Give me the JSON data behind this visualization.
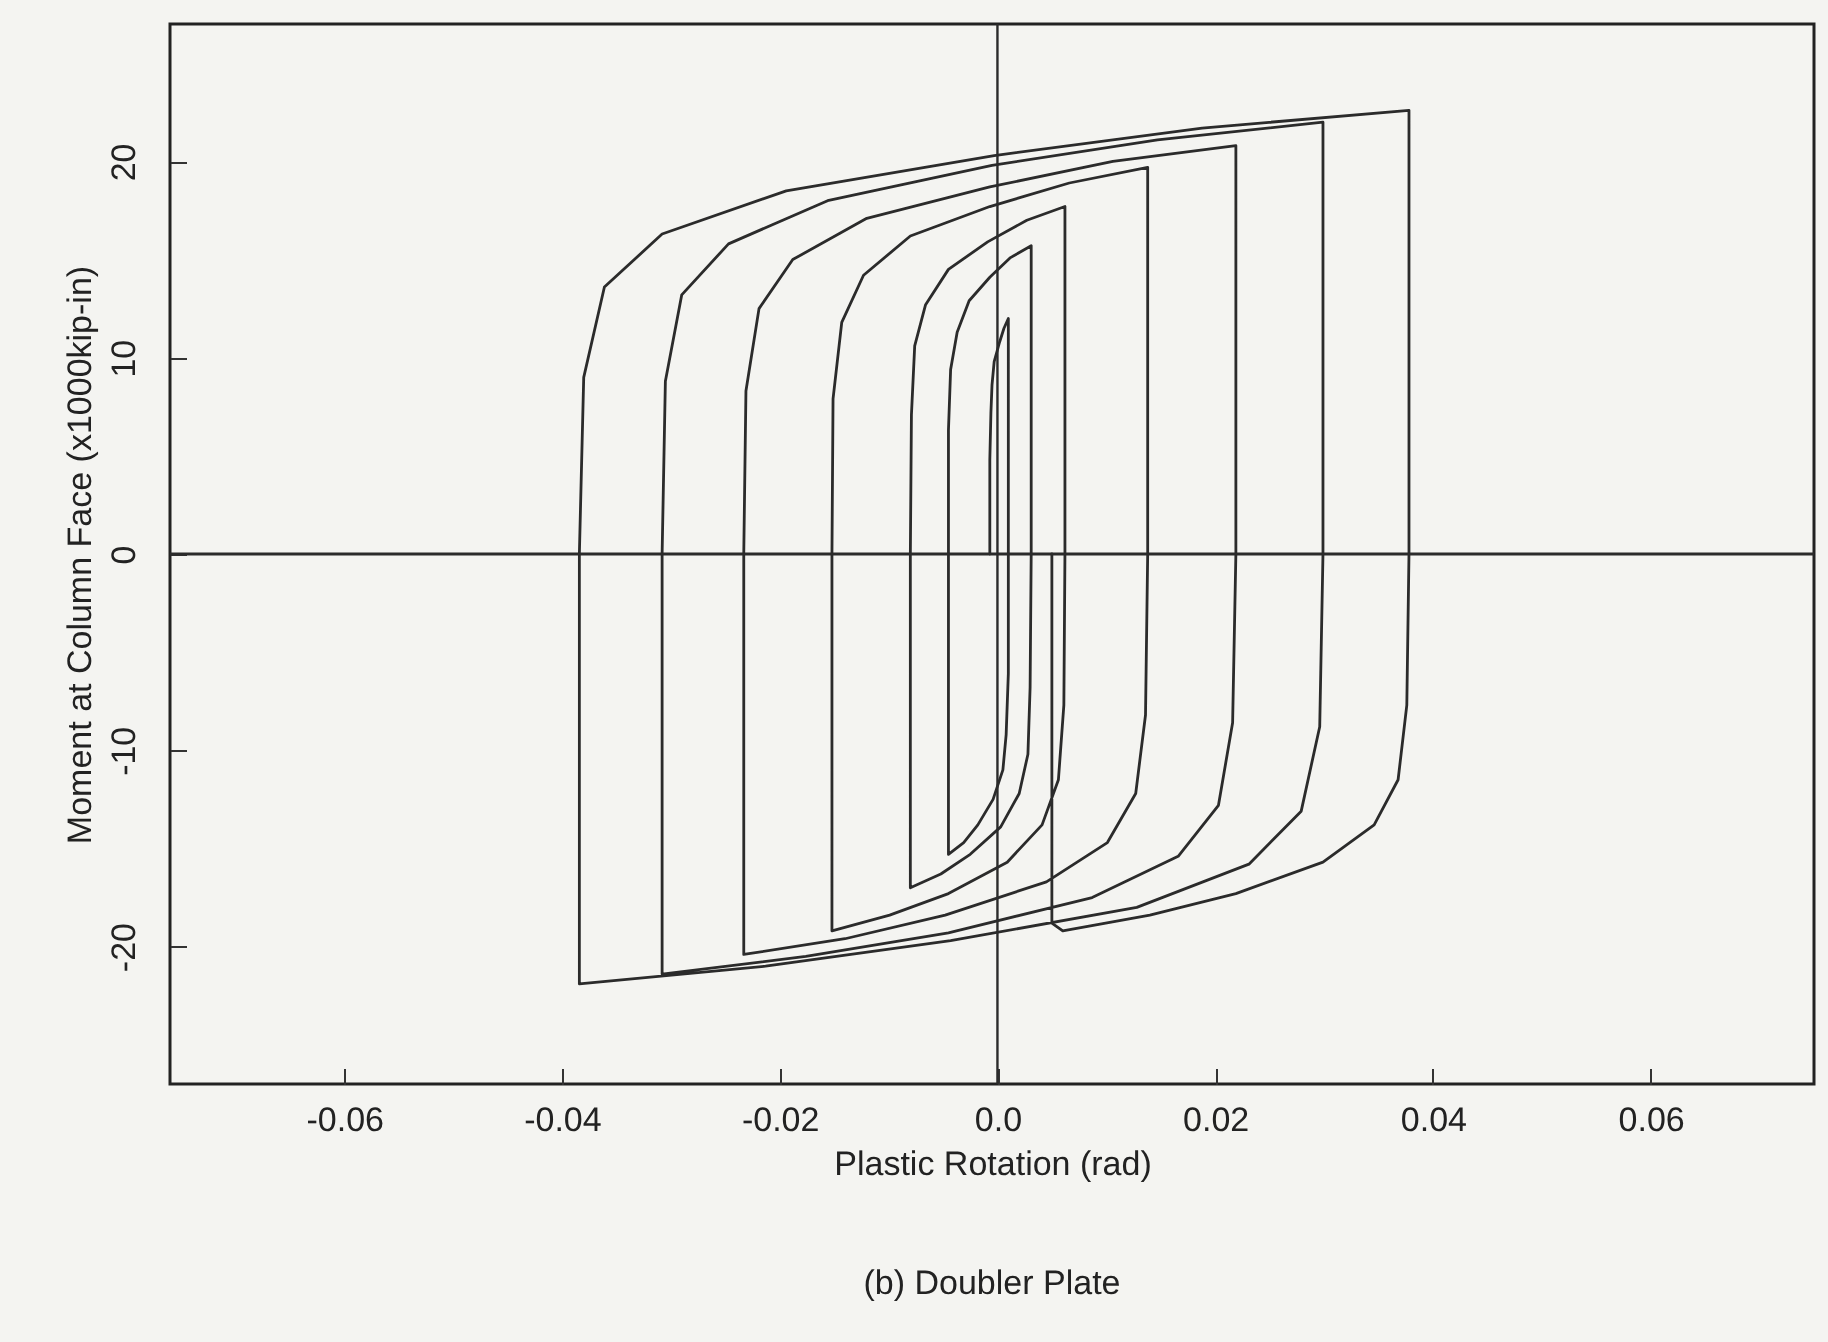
{
  "chart_data": {
    "type": "line",
    "xlabel": "Plastic Rotation (rad)",
    "ylabel": "Moment at Column Face (x1000kip-in)",
    "annotations": [
      "(b) Doubler Plate"
    ],
    "xlim": [
      -0.076,
      0.075
    ],
    "ylim": [
      -27,
      27
    ],
    "xticks": [
      -0.06,
      -0.04,
      -0.02,
      {
        "value": 0,
        "label": "0.0"
      },
      0.02,
      0.04,
      0.06
    ],
    "yticks": [
      -20,
      -10,
      0,
      10,
      20
    ],
    "grid": false,
    "marker": "none",
    "line_style": "solid",
    "ref_lines": [
      {
        "axis": "x",
        "value": 0,
        "color": "#2b2b2b"
      },
      {
        "axis": "y",
        "value": 0,
        "color": "#2b2b2b"
      }
    ],
    "series": [
      {
        "color": "#2b2b2b",
        "x": [
          -0.0007,
          -0.0007,
          -0.0006,
          -0.0005,
          -0.0003,
          0.0002,
          0.0006,
          0.001,
          0.001,
          0.001,
          0.0008,
          0.0005,
          -0.0004,
          -0.0018,
          -0.0031,
          -0.0045,
          -0.0045,
          -0.0045,
          -0.0043,
          -0.0037,
          -0.0026,
          -0.0007,
          0.0012,
          0.0031,
          0.0031,
          0.003,
          0.0028,
          0.002,
          0.0003,
          -0.0025,
          -0.0052,
          -0.008,
          -0.008,
          -0.0079,
          -0.0076,
          -0.0066,
          -0.0045,
          -0.0009,
          0.0027,
          0.0062,
          0.0062,
          0.0061,
          0.0056,
          0.0041,
          0.0009,
          -0.0045,
          -0.0099,
          -0.0152,
          -0.0152,
          -0.0151,
          -0.0143,
          -0.0123,
          -0.008,
          -0.0007,
          0.0066,
          0.0138,
          0.0138,
          0.0136,
          0.0127,
          0.0101,
          0.0045,
          -0.0048,
          -0.014,
          -0.0233,
          -0.0233,
          -0.0231,
          -0.0219,
          -0.0188,
          -0.012,
          -0.0007,
          0.0106,
          0.0219,
          0.0219,
          0.0216,
          0.0203,
          0.0166,
          0.0087,
          -0.0045,
          -0.0176,
          -0.0308,
          -0.0308,
          -0.0305,
          -0.029,
          -0.0247,
          -0.0156,
          -0.0005,
          0.0147,
          0.0299,
          0.0299,
          0.0296,
          0.0279,
          0.0231,
          0.0128,
          -0.0043,
          -0.0213,
          -0.0384,
          -0.0384,
          -0.038,
          -0.0361,
          -0.0308,
          -0.0194,
          -0.0003,
          0.0188,
          0.0378,
          0.0378,
          0.0376,
          0.0368,
          0.0346,
          0.0299,
          0.0219,
          0.014,
          0.006,
          0.005,
          0.005
        ],
        "values": [
          0,
          4.8,
          7.2,
          8.6,
          9.8,
          10.8,
          11.5,
          12,
          0,
          -6.1,
          -9.2,
          -11,
          -12.5,
          -13.8,
          -14.7,
          -15.3,
          0,
          6.3,
          9.4,
          11.3,
          12.9,
          14.1,
          15.1,
          15.7,
          0,
          -6.8,
          -10.2,
          -12.2,
          -13.9,
          -15.3,
          -16.3,
          -17,
          0,
          7.1,
          10.6,
          12.7,
          14.5,
          15.9,
          17,
          17.7,
          0,
          -7.7,
          -11.5,
          -13.8,
          -15.7,
          -17.3,
          -18.4,
          -19.2,
          0,
          7.9,
          11.8,
          14.2,
          16.2,
          17.7,
          18.9,
          19.7,
          0,
          -8.2,
          -12.2,
          -14.7,
          -16.7,
          -18.4,
          -19.6,
          -20.4,
          0,
          8.3,
          12.5,
          15,
          17.1,
          18.7,
          20,
          20.8,
          0,
          -8.6,
          -12.8,
          -15.4,
          -17.5,
          -19.3,
          -20.5,
          -21.4,
          0,
          8.8,
          13.2,
          15.8,
          18,
          19.8,
          21.1,
          22,
          0,
          -8.8,
          -13.1,
          -15.8,
          -18,
          -19.7,
          -21,
          -21.9,
          0,
          9,
          13.6,
          16.3,
          18.5,
          20.3,
          21.7,
          22.6,
          0,
          -7.7,
          -11.5,
          -13.8,
          -15.7,
          -17.3,
          -18.4,
          -19.2,
          -18.8,
          0
        ]
      }
    ]
  }
}
